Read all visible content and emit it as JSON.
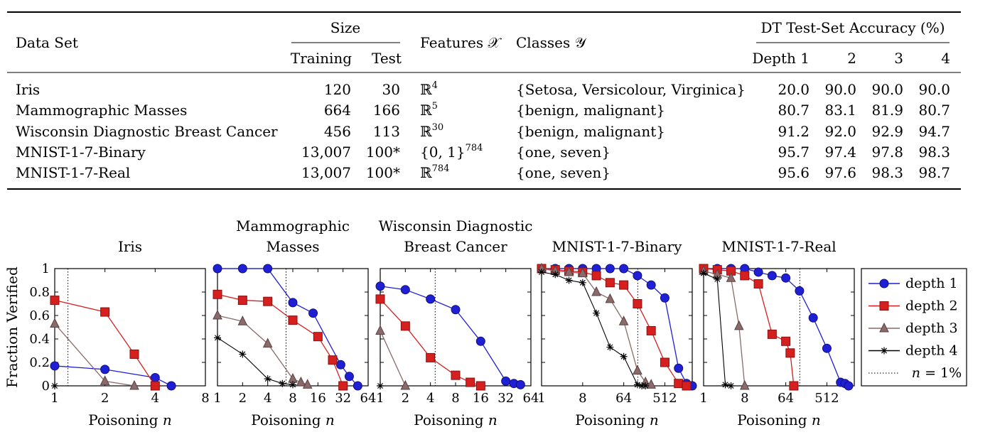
{
  "table": {
    "headers": {
      "dataset": "Data Set",
      "size": "Size",
      "training": "Training",
      "test": "Test",
      "features": "Features 𝒳",
      "classes": "Classes 𝒴",
      "accuracy": "DT Test-Set Accuracy (%)",
      "depths": [
        "Depth 1",
        "2",
        "3",
        "4"
      ]
    },
    "rows": [
      {
        "name": "Iris",
        "training": "120",
        "test": "30",
        "feat_base": "ℝ",
        "feat_sup": "4",
        "classes": "{Setosa, Versicolour, Virginica}",
        "acc": [
          "20.0",
          "90.0",
          "90.0",
          "90.0"
        ]
      },
      {
        "name": "Mammographic Masses",
        "training": "664",
        "test": "166",
        "feat_base": "ℝ",
        "feat_sup": "5",
        "classes": "{benign, malignant}",
        "acc": [
          "80.7",
          "83.1",
          "81.9",
          "80.7"
        ]
      },
      {
        "name": "Wisconsin Diagnostic Breast Cancer",
        "training": "456",
        "test": "113",
        "feat_base": "ℝ",
        "feat_sup": "30",
        "classes": "{benign, malignant}",
        "acc": [
          "91.2",
          "92.0",
          "92.9",
          "94.7"
        ]
      },
      {
        "name": "MNIST-1-7-Binary",
        "training": "13,007",
        "test": "100*",
        "feat_base": "{0, 1}",
        "feat_sup": "784",
        "classes": "{one, seven}",
        "acc": [
          "95.7",
          "97.4",
          "97.8",
          "98.3"
        ]
      },
      {
        "name": "MNIST-1-7-Real",
        "training": "13,007",
        "test": "100*",
        "feat_base": "ℝ",
        "feat_sup": "784",
        "classes": "{one, seven}",
        "acc": [
          "95.6",
          "97.6",
          "98.3",
          "98.7"
        ]
      }
    ]
  },
  "chart_data": {
    "type": "line",
    "ylabel": "Fraction Verified",
    "xlabel": "Poisoning n",
    "x_scale": "log2",
    "ylim": [
      0,
      1
    ],
    "ytick_labels": [
      "0",
      "0.2",
      "0.4",
      "0.6",
      "0.8",
      "1"
    ],
    "ytick_values": [
      0,
      0.2,
      0.4,
      0.6,
      0.8,
      1
    ],
    "legend": {
      "placement": "right",
      "entries": [
        {
          "label": "depth 1",
          "color": "#1f1fd6",
          "marker": "circle"
        },
        {
          "label": "depth 2",
          "color": "#d62020",
          "marker": "square"
        },
        {
          "label": "depth 3",
          "color": "#8a6a6a",
          "marker": "triangle"
        },
        {
          "label": "depth 4",
          "color": "#000000",
          "marker": "star"
        },
        {
          "label": "n = 1%",
          "color": "#000000",
          "marker": "dotted"
        }
      ]
    },
    "panels": [
      {
        "title": [
          "Iris"
        ],
        "xlim": [
          1,
          8
        ],
        "xtick_values": [
          1,
          2,
          4,
          8
        ],
        "xtick_labels": [
          "1",
          "2",
          "4",
          "8"
        ],
        "threshold": 1.2,
        "series": [
          {
            "x": [
              1,
              2,
              4,
              5
            ],
            "y": [
              0.17,
              0.14,
              0.07,
              0.0
            ]
          },
          {
            "x": [
              1,
              2,
              3,
              4
            ],
            "y": [
              0.73,
              0.63,
              0.27,
              0.0
            ]
          },
          {
            "x": [
              1,
              2,
              3
            ],
            "y": [
              0.53,
              0.04,
              0.0
            ]
          },
          {
            "x": [
              1
            ],
            "y": [
              0.0
            ]
          }
        ]
      },
      {
        "title": [
          "Mammographic",
          "Masses"
        ],
        "xlim": [
          1,
          64
        ],
        "xtick_values": [
          1,
          2,
          4,
          8,
          16,
          32,
          64
        ],
        "xtick_labels": [
          "1",
          "2",
          "4",
          "8",
          "16",
          "32",
          "64"
        ],
        "threshold": 6.64,
        "series": [
          {
            "x": [
              1,
              2,
              4,
              8,
              14,
              30,
              38,
              48
            ],
            "y": [
              1.0,
              1.0,
              1.0,
              0.71,
              0.62,
              0.18,
              0.08,
              0.0
            ]
          },
          {
            "x": [
              1,
              2,
              4,
              8,
              16,
              24,
              32
            ],
            "y": [
              0.78,
              0.73,
              0.72,
              0.56,
              0.42,
              0.22,
              0.0
            ]
          },
          {
            "x": [
              1,
              2,
              4,
              8,
              10,
              12
            ],
            "y": [
              0.6,
              0.55,
              0.36,
              0.06,
              0.03,
              0.01
            ]
          },
          {
            "x": [
              1,
              2,
              4,
              6,
              8
            ],
            "y": [
              0.41,
              0.27,
              0.06,
              0.02,
              0.01
            ]
          }
        ]
      },
      {
        "title": [
          "Wisconsin Diagnostic",
          "Breast Cancer"
        ],
        "xlim": [
          1,
          64
        ],
        "xtick_values": [
          1,
          2,
          4,
          8,
          16,
          32,
          64
        ],
        "xtick_labels": [
          "1",
          "2",
          "4",
          "8",
          "16",
          "32",
          "64"
        ],
        "threshold": 4.56,
        "series": [
          {
            "x": [
              1,
              2,
              4,
              8,
              16,
              32,
              40,
              48
            ],
            "y": [
              0.85,
              0.82,
              0.74,
              0.65,
              0.38,
              0.04,
              0.02,
              0.01
            ]
          },
          {
            "x": [
              1,
              2,
              4,
              8,
              12,
              16
            ],
            "y": [
              0.74,
              0.51,
              0.24,
              0.09,
              0.03,
              0.0
            ]
          },
          {
            "x": [
              1,
              2
            ],
            "y": [
              0.47,
              0.0
            ]
          },
          {
            "x": [
              1
            ],
            "y": [
              0.0
            ]
          }
        ]
      },
      {
        "title": [
          "MNIST-1-7-Binary"
        ],
        "xlim": [
          1,
          2048
        ],
        "xtick_values": [
          1,
          8,
          64,
          512
        ],
        "xtick_labels": [
          "1",
          "8",
          "64",
          "512"
        ],
        "threshold": 130,
        "series": [
          {
            "x": [
              1,
              2,
              4,
              8,
              16,
              32,
              64,
              128,
              256,
              512,
              1024,
              1536,
              2048
            ],
            "y": [
              1.0,
              1.0,
              1.0,
              1.0,
              1.0,
              1.0,
              1.0,
              0.94,
              0.86,
              0.75,
              0.15,
              0.02,
              0.0
            ]
          },
          {
            "x": [
              1,
              2,
              4,
              8,
              16,
              32,
              64,
              128,
              256,
              512,
              1024,
              1536
            ],
            "y": [
              1.0,
              0.99,
              0.98,
              0.97,
              0.94,
              0.88,
              0.86,
              0.7,
              0.47,
              0.2,
              0.02,
              0.0
            ]
          },
          {
            "x": [
              1,
              2,
              4,
              8,
              16,
              32,
              64,
              128,
              192,
              256
            ],
            "y": [
              1.0,
              0.98,
              0.97,
              0.96,
              0.8,
              0.74,
              0.55,
              0.13,
              0.03,
              0.01
            ]
          },
          {
            "x": [
              1,
              2,
              4,
              8,
              16,
              32,
              64,
              128,
              160,
              192
            ],
            "y": [
              0.97,
              0.95,
              0.9,
              0.88,
              0.62,
              0.33,
              0.25,
              0.01,
              0.0,
              0.0
            ]
          }
        ]
      },
      {
        "title": [
          "MNIST-1-7-Real"
        ],
        "xlim": [
          1,
          2048
        ],
        "xtick_values": [
          1,
          8,
          64,
          512
        ],
        "xtick_labels": [
          "1",
          "8",
          "64",
          "512"
        ],
        "threshold": 130,
        "series": [
          {
            "x": [
              1,
              2,
              4,
              8,
              16,
              32,
              64,
              128,
              256,
              512,
              1024,
              1280,
              1536
            ],
            "y": [
              1.0,
              1.0,
              1.0,
              1.0,
              0.97,
              0.94,
              0.92,
              0.81,
              0.58,
              0.32,
              0.03,
              0.02,
              0.0
            ]
          },
          {
            "x": [
              1,
              2,
              4,
              8,
              16,
              32,
              64,
              80,
              96
            ],
            "y": [
              1.0,
              0.99,
              0.98,
              0.94,
              0.87,
              0.44,
              0.38,
              0.28,
              0.0
            ]
          },
          {
            "x": [
              1,
              2,
              4,
              6,
              8
            ],
            "y": [
              0.98,
              0.95,
              0.92,
              0.51,
              0.0
            ]
          },
          {
            "x": [
              1,
              2,
              3,
              4
            ],
            "y": [
              0.96,
              0.91,
              0.01,
              0.0
            ]
          }
        ]
      }
    ]
  }
}
